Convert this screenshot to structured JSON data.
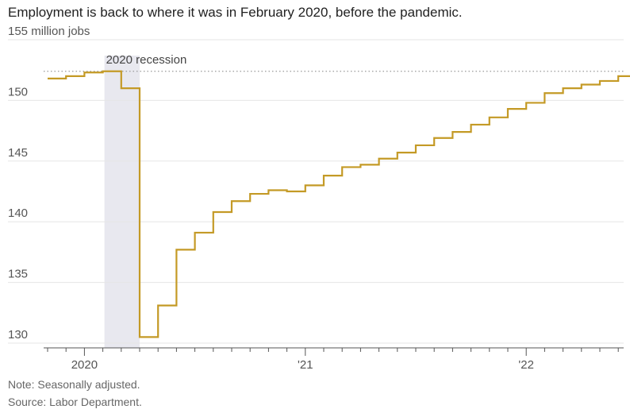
{
  "headline": "Employment is back to where it was in February 2020, before the pandemic.",
  "note": "Note: Seasonally adjusted.",
  "source": "Source: Labor Department.",
  "chart_data": {
    "type": "line",
    "step": true,
    "unit_label": "155 million jobs",
    "ylim": [
      130,
      155
    ],
    "yticks": [
      130,
      135,
      140,
      145,
      150
    ],
    "ytick_labels": [
      "130",
      "135",
      "140",
      "145",
      "150"
    ],
    "x": [
      "2019-11",
      "2019-12",
      "2020-01",
      "2020-02",
      "2020-03",
      "2020-04",
      "2020-05",
      "2020-06",
      "2020-07",
      "2020-08",
      "2020-09",
      "2020-10",
      "2020-11",
      "2020-12",
      "2021-01",
      "2021-02",
      "2021-03",
      "2021-04",
      "2021-05",
      "2021-06",
      "2021-07",
      "2021-08",
      "2021-09",
      "2021-10",
      "2021-11",
      "2021-12",
      "2022-01",
      "2022-02",
      "2022-03",
      "2022-04",
      "2022-05",
      "2022-06",
      "2022-07"
    ],
    "values": [
      151.8,
      152.0,
      152.3,
      152.4,
      151.0,
      130.5,
      133.1,
      137.7,
      139.1,
      140.8,
      141.7,
      142.3,
      142.6,
      142.5,
      143.0,
      143.8,
      144.5,
      144.7,
      145.2,
      145.7,
      146.3,
      146.9,
      147.4,
      148.0,
      148.6,
      149.3,
      149.8,
      150.6,
      151.0,
      151.3,
      151.6,
      152.0,
      152.5
    ],
    "reference_line": {
      "value": 152.4,
      "style": "dotted"
    },
    "shaded_region": {
      "from": "2020-02",
      "to": "2020-04",
      "label": "2020 recession"
    },
    "xtick_labels": [
      {
        "date": "2020-01",
        "label": "2020"
      },
      {
        "date": "2021-01",
        "label": "'21"
      },
      {
        "date": "2022-01",
        "label": "'22"
      }
    ],
    "colors": {
      "line": "#c49a26",
      "shade": "#e8e8ef",
      "grid": "#e6e6e6",
      "reference": "#999999"
    },
    "grid": true
  }
}
